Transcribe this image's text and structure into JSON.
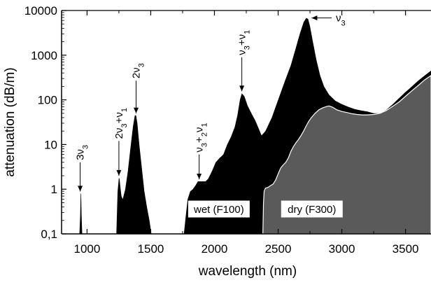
{
  "chart_data": {
    "type": "area",
    "xlabel": "wavelength (nm)",
    "ylabel": "attenuation (dB/m)",
    "xlim": [
      800,
      3700
    ],
    "ylim": [
      0.1,
      10000
    ],
    "yscale": "log",
    "x_ticks": [
      1000,
      1500,
      2000,
      2500,
      3000,
      3500
    ],
    "x_tick_labels": [
      "1000",
      "1500",
      "2000",
      "2500",
      "3000",
      "3500"
    ],
    "y_ticks": [
      0.1,
      1,
      10,
      100,
      1000,
      10000
    ],
    "y_tick_labels": [
      "0,1",
      "1",
      "10",
      "100",
      "1000",
      "10000"
    ],
    "grid": false,
    "series": [
      {
        "name": "wet (F100)",
        "color": "#000000",
        "segments": [
          {
            "x": [
              940,
              946,
              950,
              953,
              957,
              962
            ],
            "y": [
              0.1,
              0.25,
              0.8,
              0.8,
              0.25,
              0.1
            ]
          },
          {
            "x": [
              1230,
              1240,
              1250,
              1255,
              1262,
              1270,
              1280,
              1300,
              1320,
              1340,
              1360,
              1375,
              1385,
              1395,
              1410,
              1430,
              1450,
              1470,
              1490,
              1505
            ],
            "y": [
              0.1,
              0.9,
              1.8,
              1.7,
              1.1,
              0.7,
              0.6,
              1.0,
              2.5,
              8,
              25,
              45,
              45,
              30,
              10,
              3,
              0.9,
              0.4,
              0.2,
              0.1
            ]
          },
          {
            "x": [
              1760,
              1775,
              1790,
              1810,
              1830,
              1850,
              1870,
              1890,
              1910,
              1930,
              1950,
              1980,
              2010,
              2040,
              2070,
              2100,
              2130,
              2160,
              2180,
              2200,
              2215,
              2235,
              2260,
              2290,
              2320,
              2350,
              2370,
              2400,
              2450,
              2500,
              2550,
              2600,
              2640,
              2670,
              2700,
              2720,
              2735,
              2750,
              2770,
              2800,
              2830,
              2860,
              2900,
              2950,
              3000,
              3050,
              3100,
              3150,
              3200,
              3250,
              3300,
              3350,
              3400,
              3450,
              3500,
              3550,
              3600,
              3650,
              3700
            ],
            "y": [
              0.1,
              0.25,
              0.6,
              0.9,
              1.0,
              1.2,
              1.5,
              1.5,
              1.5,
              1.5,
              1.7,
              2.5,
              4,
              5,
              6,
              10,
              15,
              25,
              45,
              100,
              140,
              120,
              75,
              50,
              35,
              22,
              16,
              20,
              40,
              100,
              250,
              600,
              1500,
              3000,
              5500,
              6800,
              6500,
              4500,
              2200,
              800,
              350,
              200,
              130,
              95,
              80,
              70,
              62,
              58,
              55,
              50,
              50,
              60,
              80,
              110,
              150,
              200,
              270,
              350,
              450
            ]
          }
        ]
      },
      {
        "name": "dry (F300)",
        "color": "#5a5a5a",
        "segments": [
          {
            "x": [
              2380,
              2385,
              2390,
              2400,
              2420,
              2440,
              2460,
              2480,
              2500,
              2520,
              2540,
              2560,
              2580,
              2600,
              2620,
              2640,
              2660,
              2680,
              2700,
              2720,
              2740,
              2760,
              2790,
              2820,
              2850,
              2880,
              2900,
              2930,
              2960,
              3000,
              3040,
              3080,
              3120,
              3160,
              3200,
              3250,
              3300,
              3350,
              3400,
              3450,
              3500,
              3550,
              3600,
              3650,
              3700
            ],
            "y": [
              0.1,
              0.5,
              0.9,
              1.05,
              1.1,
              1.2,
              1.3,
              1.6,
              2.2,
              3.0,
              3.5,
              4.0,
              5.0,
              7.0,
              9.0,
              11,
              13,
              16,
              20,
              26,
              33,
              40,
              50,
              60,
              66,
              71,
              73,
              68,
              60,
              55,
              52,
              49,
              47,
              46,
              46,
              47,
              50,
              58,
              72,
              90,
              120,
              160,
              210,
              280,
              350
            ]
          }
        ]
      }
    ],
    "annotations": [
      {
        "text": "3ν3",
        "x": 946,
        "y": 0.8,
        "label_y": 4.0,
        "orient": "vertical"
      },
      {
        "text": "2ν3+ν1",
        "x": 1250,
        "y": 1.8,
        "label_y": 12.0,
        "orient": "vertical"
      },
      {
        "text": "2ν3",
        "x": 1385,
        "y": 45,
        "label_y": 270,
        "orient": "vertical"
      },
      {
        "text": "ν3+2ν1",
        "x": 1880,
        "y": 1.5,
        "label_y": 6.0,
        "orient": "vertical"
      },
      {
        "text": "ν3+ν1",
        "x": 2215,
        "y": 140,
        "label_y": 900,
        "orient": "vertical"
      },
      {
        "text": "ν3",
        "x": 2730,
        "y": 6800,
        "label_x": 2920,
        "label_y": 6400,
        "orient": "horizontal"
      }
    ],
    "series_labels": [
      {
        "text": "wet (F100)",
        "x": 2035,
        "y": 0.36
      },
      {
        "text": "dry (F300)",
        "x": 2765,
        "y": 0.36
      }
    ]
  }
}
